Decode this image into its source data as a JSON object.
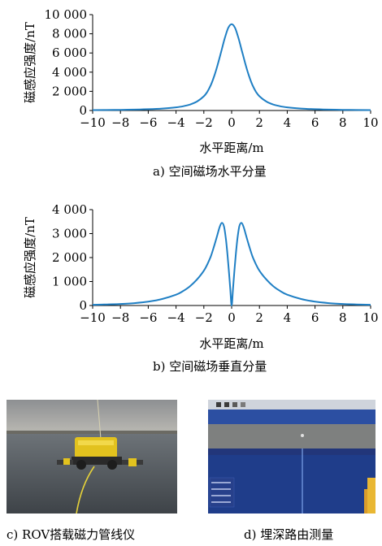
{
  "chart_data": [
    {
      "type": "line",
      "caption": "a) 空间磁场水平分量",
      "xlabel": "水平距离/m",
      "ylabel": "磁感应强度/nT",
      "xlim": [
        -10,
        10
      ],
      "ylim": [
        0,
        10000
      ],
      "xticks": [
        -10,
        -8,
        -6,
        -4,
        -2,
        0,
        2,
        4,
        6,
        8,
        10
      ],
      "xtick_labels": [
        "−10",
        "−8",
        "−6",
        "−4",
        "−2",
        "0",
        "2",
        "4",
        "6",
        "8",
        "10"
      ],
      "yticks": [
        0,
        2000,
        4000,
        6000,
        8000,
        10000
      ],
      "ytick_labels": [
        "0",
        "2 000",
        "4 000",
        "6 000",
        "8 000",
        "10 000"
      ],
      "line_color": "#1f7fc4",
      "series": [
        {
          "x": [
            -10,
            -9,
            -8,
            -7,
            -6,
            -5,
            -4,
            -3.5,
            -3,
            -2.5,
            -2,
            -1.75,
            -1.5,
            -1.25,
            -1,
            -0.75,
            -0.5,
            -0.25,
            0,
            0.25,
            0.5,
            0.75,
            1,
            1.25,
            1.5,
            1.75,
            2,
            2.5,
            3,
            3.5,
            4,
            5,
            6,
            7,
            8,
            9,
            10
          ],
          "y": [
            45,
            55,
            70,
            95,
            135,
            205,
            330,
            440,
            620,
            930,
            1480,
            1950,
            2650,
            3600,
            4800,
            6150,
            7500,
            8600,
            9000,
            8600,
            7500,
            6150,
            4800,
            3600,
            2650,
            1950,
            1480,
            930,
            620,
            440,
            330,
            205,
            135,
            95,
            70,
            55,
            45
          ]
        }
      ]
    },
    {
      "type": "line",
      "caption": "b) 空间磁场垂直分量",
      "xlabel": "水平距离/m",
      "ylabel": "磁感应强度/nT",
      "xlim": [
        -10,
        10
      ],
      "ylim": [
        0,
        4000
      ],
      "xticks": [
        -10,
        -8,
        -6,
        -4,
        -2,
        0,
        2,
        4,
        6,
        8,
        10
      ],
      "xtick_labels": [
        "−10",
        "−8",
        "−6",
        "−4",
        "−2",
        "0",
        "2",
        "4",
        "6",
        "8",
        "10"
      ],
      "yticks": [
        0,
        1000,
        2000,
        3000,
        4000
      ],
      "ytick_labels": [
        "0",
        "1 000",
        "2 000",
        "3 000",
        "4 000"
      ],
      "line_color": "#1f7fc4",
      "series": [
        {
          "x": [
            -10,
            -9,
            -8,
            -7,
            -6,
            -5,
            -4,
            -3.5,
            -3,
            -2.5,
            -2,
            -1.75,
            -1.5,
            -1.25,
            -1,
            -0.85,
            -0.7,
            -0.55,
            -0.4,
            -0.25,
            -0.1,
            0,
            0.1,
            0.25,
            0.4,
            0.55,
            0.7,
            0.85,
            1,
            1.25,
            1.5,
            1.75,
            2,
            2.5,
            3,
            3.5,
            4,
            5,
            6,
            7,
            8,
            9,
            10
          ],
          "y": [
            30,
            45,
            65,
            100,
            160,
            270,
            450,
            600,
            800,
            1080,
            1450,
            1720,
            2050,
            2500,
            3000,
            3300,
            3450,
            3300,
            2700,
            1800,
            700,
            0,
            700,
            1800,
            2700,
            3300,
            3450,
            3300,
            3000,
            2500,
            2050,
            1720,
            1450,
            1080,
            800,
            600,
            450,
            270,
            160,
            100,
            65,
            45,
            30
          ]
        }
      ]
    }
  ],
  "photos": {
    "rov_caption": "c) ROV搭载磁力管线仪",
    "route_caption": "d) 埋深路由测量"
  }
}
